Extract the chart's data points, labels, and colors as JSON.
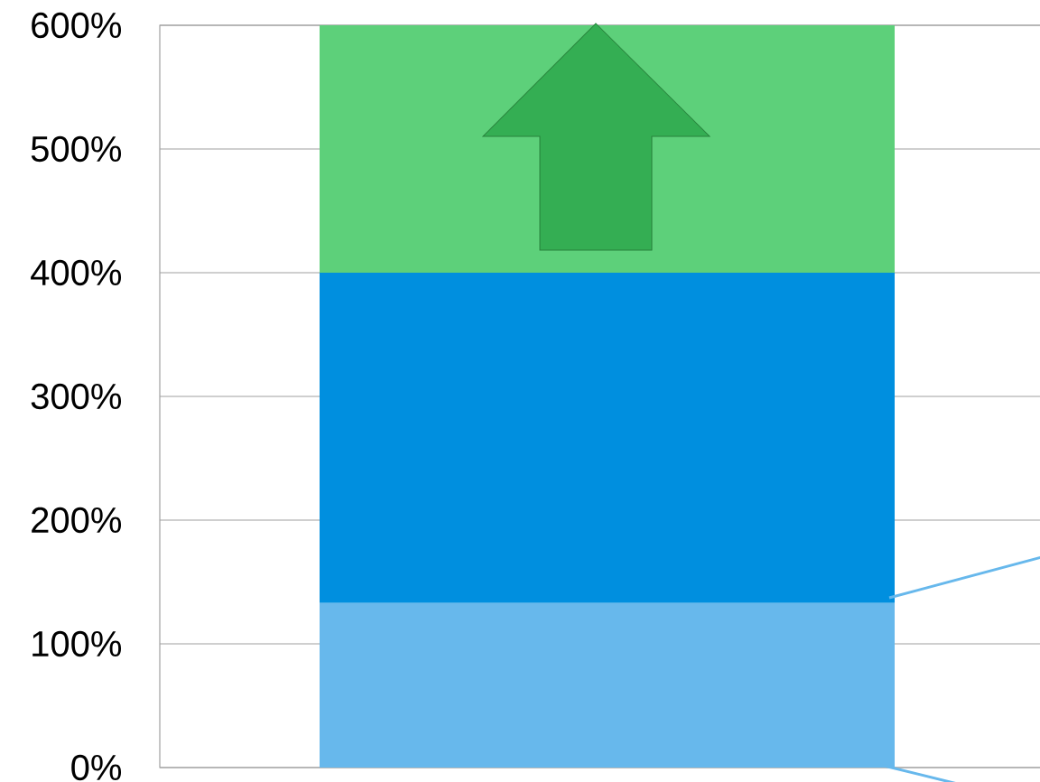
{
  "chart_data": {
    "type": "bar",
    "stacked": true,
    "categories": [
      null
    ],
    "series": [
      {
        "color": "#67b8ec",
        "values": [
          133
        ]
      },
      {
        "color": "#008fdf",
        "values": [
          267
        ]
      },
      {
        "color": "#5dd07a",
        "values": [
          200
        ]
      }
    ],
    "ylim": [
      0,
      600
    ],
    "yticks": [
      {
        "value": 0,
        "label": "0%"
      },
      {
        "value": 100,
        "label": "100%"
      },
      {
        "value": 200,
        "label": "200%"
      },
      {
        "value": 300,
        "label": "300%"
      },
      {
        "value": 400,
        "label": "400%"
      },
      {
        "value": 500,
        "label": "500%"
      },
      {
        "value": 600,
        "label": "600%"
      }
    ],
    "grid": "y",
    "tick_labels": "y"
  }
}
